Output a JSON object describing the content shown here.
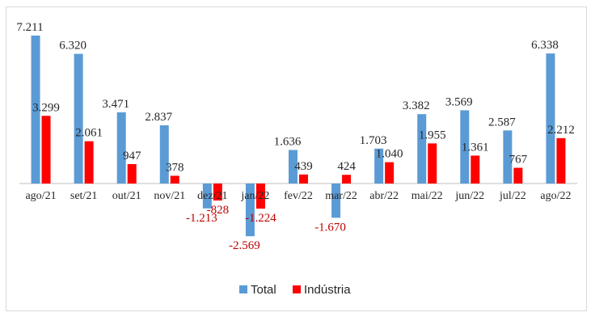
{
  "chart_data": {
    "type": "bar",
    "title": "",
    "xlabel": "",
    "ylabel": "",
    "ylim": [
      -3000,
      7500
    ],
    "grid": false,
    "legend_position": "bottom",
    "categories": [
      "ago/21",
      "set/21",
      "out/21",
      "nov/21",
      "dez/21",
      "jan/22",
      "fev/22",
      "mar/22",
      "abr/22",
      "mai/22",
      "jun/22",
      "jul/22",
      "ago/22"
    ],
    "series": [
      {
        "name": "Total",
        "color": "#5b9bd5",
        "values": [
          7211,
          6320,
          3471,
          2837,
          -1213,
          -2569,
          1636,
          -1670,
          1703,
          3382,
          3569,
          2587,
          6338
        ],
        "labels": [
          "7.211",
          "6.320",
          "3.471",
          "2.837",
          "-1.213",
          "-2.569",
          "1.636",
          "-1.670",
          "1.703",
          "3.382",
          "3.569",
          "2.587",
          "6.338"
        ]
      },
      {
        "name": "Indústria",
        "color": "#ff0000",
        "values": [
          3299,
          2061,
          947,
          378,
          -828,
          -1224,
          439,
          424,
          1040,
          1955,
          1361,
          767,
          2212
        ],
        "labels": [
          "3.299",
          "2.061",
          "947",
          "378",
          "-828",
          "-1.224",
          "439",
          "424",
          "1.040",
          "1.955",
          "1.361",
          "767",
          "2.212"
        ]
      }
    ]
  }
}
